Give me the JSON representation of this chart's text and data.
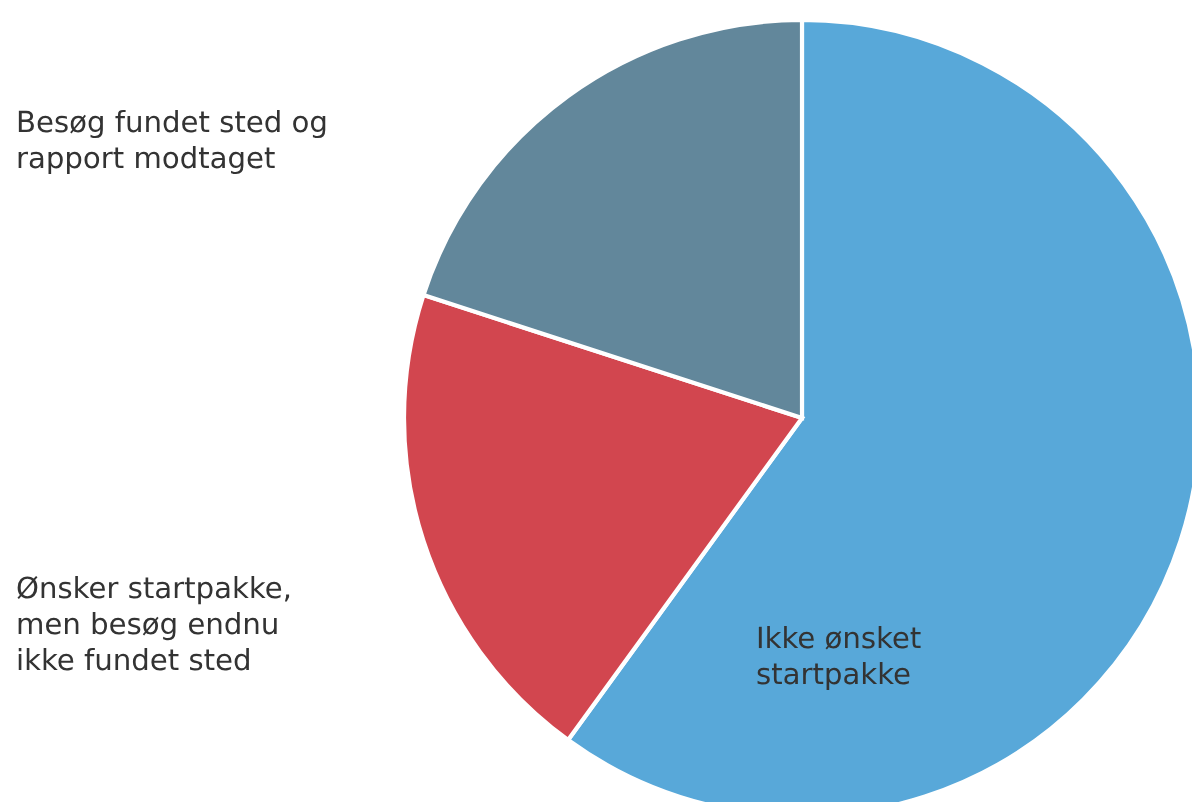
{
  "chart_data": {
    "type": "pie",
    "categories": [
      "Ikke ønsket\nstartpakke",
      "Ønsker startpakke,\nmen besøg endnu\nikke fundet sted",
      "Besøg fundet sted og\nrapport modtaget"
    ],
    "values": [
      60,
      20,
      20
    ],
    "colors": [
      "#58a8d9",
      "#d2464f",
      "#62879b"
    ]
  }
}
